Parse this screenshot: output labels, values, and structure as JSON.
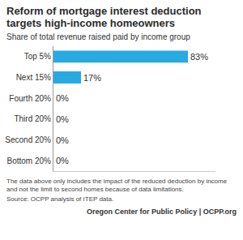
{
  "chart_data": {
    "type": "bar",
    "orientation": "horizontal",
    "title": "Reform of mortgage interest deduction targets high-income homeowners",
    "subtitle": "Share of total revenue raised paid by income group",
    "categories": [
      "Top 5%",
      "Next 15%",
      "Fourth 20%",
      "Third 20%",
      "Second 20%",
      "Bottom 20%"
    ],
    "values": [
      83,
      17,
      0,
      0,
      0,
      0
    ],
    "value_labels": [
      "83%",
      "17%",
      "0%",
      "0%",
      "0%",
      "0%"
    ],
    "data_labels": true,
    "color": "#29a9e1",
    "xlim": [
      0,
      100
    ],
    "tick_labels": "y",
    "grid": false,
    "annotations": [
      "The data above only includes the impact of the reduced deduction by income and not the limit to second homes because of data limitations.",
      "Source: OCPP analysis of ITEP data.",
      "Oregon Center for Public Policy | OCPP.org"
    ]
  }
}
